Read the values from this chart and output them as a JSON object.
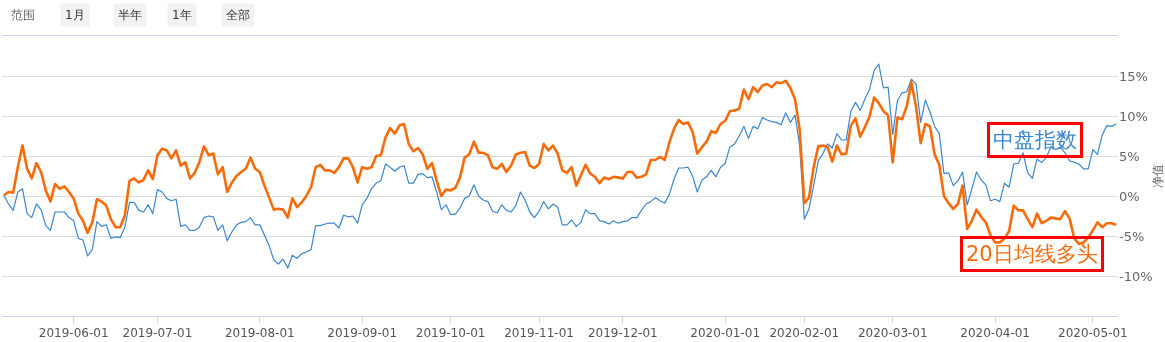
{
  "chart_data": {
    "type": "line",
    "annotations": [
      "范围",
      "1月",
      "半年",
      "1年",
      "全部"
    ],
    "ylabel": "净值",
    "categories": [
      null,
      null,
      null,
      null,
      null,
      null,
      null,
      null,
      null,
      null,
      null,
      null,
      null,
      null,
      null,
      "2019-06-01",
      null,
      null,
      null,
      null,
      null,
      null,
      null,
      null,
      null,
      null,
      null,
      null,
      null,
      null,
      null,
      null,
      null,
      "2019-07-01",
      null,
      null,
      null,
      null,
      null,
      null,
      null,
      null,
      null,
      null,
      null,
      null,
      null,
      null,
      null,
      null,
      null,
      null,
      null,
      null,
      null,
      "2019-08-01",
      null,
      null,
      null,
      null,
      null,
      null,
      null,
      null,
      null,
      null,
      null,
      null,
      null,
      null,
      null,
      null,
      null,
      null,
      null,
      null,
      null,
      "2019-09-01",
      null,
      null,
      null,
      null,
      null,
      null,
      null,
      null,
      null,
      null,
      null,
      null,
      null,
      null,
      null,
      null,
      null,
      null,
      "2019-10-01",
      null,
      null,
      null,
      null,
      null,
      null,
      null,
      null,
      null,
      null,
      null,
      null,
      null,
      null,
      null,
      null,
      null,
      null,
      "2019-11-01",
      null,
      null,
      null,
      null,
      null,
      null,
      null,
      null,
      null,
      null,
      null,
      null,
      null,
      null,
      null,
      null,
      null,
      "2019-12-01",
      null,
      null,
      null,
      null,
      null,
      null,
      null,
      null,
      null,
      null,
      null,
      null,
      null,
      null,
      null,
      null,
      null,
      null,
      null,
      null,
      null,
      "2020-01-01",
      null,
      null,
      null,
      null,
      null,
      null,
      null,
      null,
      null,
      null,
      null,
      null,
      null,
      null,
      null,
      null,
      "2020-02-01",
      null,
      null,
      null,
      null,
      null,
      null,
      null,
      null,
      null,
      null,
      null,
      null,
      null,
      null,
      null,
      null,
      null,
      null,
      "2020-03-01",
      null,
      null,
      null,
      null,
      null,
      null,
      null,
      null,
      null,
      null,
      null,
      null,
      null,
      null,
      null,
      null,
      null,
      null,
      null,
      null,
      null,
      "2020-04-01",
      null,
      null,
      null,
      null,
      null,
      null,
      null,
      null,
      null,
      null,
      null,
      null,
      null,
      null,
      null,
      null,
      null,
      null,
      null,
      null,
      "2020-05-01",
      null,
      null,
      null,
      null,
      null
    ],
    "series": [
      {
        "name": "中盘指数",
        "color": "#3b86cf",
        "values": [
          0.1,
          -1.0,
          -1.8,
          0.5,
          0.9,
          -2.2,
          -2.7,
          -1.0,
          -1.7,
          -3.7,
          -4.3,
          -2.0,
          -2.0,
          -2.0,
          -2.7,
          -3.1,
          -5.3,
          -5.5,
          -7.5,
          -6.7,
          -3.2,
          -3.8,
          -3.6,
          -5.3,
          -5.1,
          -5.2,
          -3.9,
          -0.8,
          -0.8,
          -1.8,
          -2.0,
          -1.1,
          -2.2,
          0.8,
          0.5,
          -0.3,
          -0.6,
          -0.4,
          -3.8,
          -3.6,
          -4.3,
          -4.3,
          -3.9,
          -2.7,
          -2.5,
          -2.6,
          -4.3,
          -3.6,
          -5.6,
          -4.5,
          -3.6,
          -3.3,
          -3.2,
          -2.7,
          -3.6,
          -3.6,
          -4.9,
          -6.2,
          -8.0,
          -8.5,
          -7.9,
          -9.0,
          -7.4,
          -7.8,
          -7.2,
          -7.0,
          -6.7,
          -3.7,
          -3.7,
          -3.5,
          -3.4,
          -3.4,
          -4.0,
          -2.4,
          -2.6,
          -2.5,
          -3.4,
          -1.1,
          -0.3,
          0.9,
          1.6,
          1.9,
          4.0,
          3.6,
          3.1,
          3.6,
          3.8,
          1.6,
          1.6,
          2.7,
          2.8,
          2.3,
          2.4,
          0.5,
          -1.7,
          -1.1,
          -2.3,
          -2.3,
          -1.5,
          -0.3,
          0.0,
          1.4,
          0.0,
          -0.5,
          -0.7,
          -1.9,
          -2.1,
          -1.1,
          -1.8,
          -2.0,
          -1.2,
          0.5,
          -0.5,
          -2.0,
          -2.7,
          -1.9,
          -0.7,
          -1.6,
          -1.0,
          -1.4,
          -3.6,
          -3.6,
          -3.0,
          -3.8,
          -3.3,
          -1.7,
          -2.2,
          -2.2,
          -3.1,
          -3.2,
          -3.5,
          -3.1,
          -3.4,
          -3.2,
          -3.1,
          -2.7,
          -2.7,
          -1.8,
          -1.0,
          -0.7,
          -0.2,
          -0.6,
          -0.9,
          0.2,
          2.1,
          3.5,
          3.5,
          3.6,
          2.5,
          0.5,
          2.0,
          2.4,
          3.2,
          2.4,
          3.6,
          4.1,
          6.1,
          6.5,
          7.5,
          8.7,
          7.2,
          8.7,
          8.4,
          9.8,
          9.5,
          9.3,
          9.2,
          8.9,
          10.4,
          9.2,
          10.1,
          6.3,
          -2.9,
          -1.6,
          1.3,
          4.4,
          5.3,
          6.5,
          6.0,
          7.8,
          7.0,
          7.0,
          10.6,
          11.7,
          10.7,
          12.1,
          13.3,
          15.7,
          16.5,
          13.5,
          13.6,
          7.7,
          11.9,
          12.9,
          13.0,
          14.6,
          14.0,
          9.2,
          12.0,
          10.5,
          8.7,
          7.8,
          2.8,
          2.9,
          1.3,
          1.9,
          3.0,
          -1.1,
          0.9,
          3.0,
          2.0,
          1.4,
          -0.6,
          -0.4,
          -0.7,
          1.6,
          1.1,
          4.0,
          4.1,
          5.4,
          2.9,
          2.2,
          4.6,
          4.2,
          4.8,
          6.2,
          5.8,
          6.1,
          5.4,
          4.4,
          4.2,
          4.0,
          3.4,
          3.4,
          5.8,
          5.2,
          7.6,
          8.8,
          8.7,
          9.0
        ]
      },
      {
        "name": "20日均线多头",
        "color": "#f76b0b",
        "values": [
          0.1,
          0.5,
          0.4,
          3.6,
          6.3,
          3.4,
          2.2,
          4.1,
          3.0,
          0.7,
          -0.7,
          1.5,
          0.9,
          1.2,
          0.5,
          -0.3,
          -2.2,
          -3.1,
          -4.6,
          -3.3,
          -0.4,
          -0.7,
          -1.2,
          -2.9,
          -3.9,
          -3.9,
          -2.4,
          1.9,
          2.2,
          1.7,
          2.0,
          3.2,
          2.1,
          5.1,
          5.9,
          5.7,
          4.7,
          5.7,
          3.8,
          4.2,
          2.2,
          2.9,
          4.2,
          6.2,
          5.1,
          5.3,
          2.7,
          3.6,
          0.5,
          1.7,
          2.5,
          3.0,
          3.4,
          4.8,
          3.4,
          3.0,
          1.3,
          -0.2,
          -1.7,
          -1.6,
          -1.7,
          -2.7,
          -0.3,
          -1.4,
          -0.8,
          0.0,
          1.1,
          3.6,
          3.9,
          3.2,
          3.2,
          2.9,
          3.6,
          4.7,
          4.7,
          3.6,
          1.7,
          3.6,
          3.4,
          3.6,
          5.0,
          5.1,
          7.3,
          8.5,
          7.8,
          8.8,
          9.0,
          6.5,
          5.6,
          6.0,
          5.2,
          3.4,
          4.1,
          1.9,
          0.0,
          0.8,
          0.7,
          1.0,
          2.3,
          4.8,
          5.2,
          6.8,
          5.4,
          5.4,
          5.1,
          3.6,
          3.4,
          4.0,
          3.0,
          3.8,
          5.2,
          5.4,
          5.5,
          3.8,
          3.5,
          4.0,
          6.5,
          5.7,
          6.3,
          5.3,
          3.2,
          2.9,
          3.6,
          1.3,
          2.6,
          3.9,
          2.8,
          2.4,
          1.6,
          2.3,
          2.1,
          2.4,
          2.3,
          2.2,
          3.0,
          3.0,
          2.3,
          2.4,
          2.7,
          4.5,
          4.5,
          4.9,
          4.5,
          6.7,
          8.4,
          9.5,
          9.0,
          9.2,
          8.0,
          5.3,
          6.1,
          6.8,
          8.1,
          7.9,
          9.0,
          9.4,
          10.6,
          10.7,
          10.9,
          13.3,
          12.1,
          13.6,
          13.0,
          13.8,
          14.0,
          13.6,
          14.2,
          14.1,
          14.4,
          13.5,
          12.1,
          8.3,
          -0.9,
          -0.2,
          3.6,
          6.2,
          6.3,
          6.1,
          4.3,
          6.3,
          5.2,
          5.3,
          8.8,
          9.7,
          7.4,
          8.6,
          9.9,
          12.3,
          11.6,
          10.6,
          10.1,
          4.2,
          9.8,
          9.6,
          11.2,
          14.2,
          11.2,
          6.6,
          9.0,
          8.7,
          5.2,
          3.9,
          0.0,
          -0.9,
          -1.6,
          -1.0,
          1.3,
          -4.1,
          -3.1,
          -1.7,
          -2.6,
          -3.3,
          -4.9,
          -5.8,
          -5.8,
          -5.3,
          -4.4,
          -1.2,
          -1.8,
          -1.8,
          -2.9,
          -3.9,
          -2.2,
          -3.4,
          -3.1,
          -2.7,
          -2.8,
          -2.9,
          -1.9,
          -2.8,
          -5.3,
          -6.0,
          -5.8,
          -5.2,
          -4.3,
          -3.3,
          -3.9,
          -3.4,
          -3.4,
          -3.6
        ]
      }
    ],
    "ylim": [
      -15,
      20
    ],
    "yticks": [
      {
        "value": -10,
        "label": "-10%"
      },
      {
        "value": -5,
        "label": "-5%"
      },
      {
        "value": 0,
        "label": "0%"
      },
      {
        "value": 5,
        "label": "5%"
      },
      {
        "value": 10,
        "label": "10%"
      },
      {
        "value": 15,
        "label": "15%"
      }
    ],
    "grid": "y",
    "legend": false,
    "marker": "none",
    "line_style": "solid"
  }
}
